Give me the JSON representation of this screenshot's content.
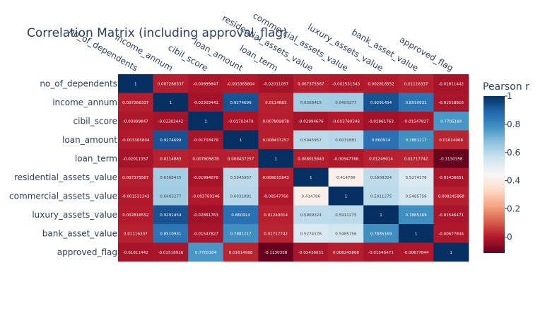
{
  "chart_data": {
    "type": "heatmap",
    "title": "Correlation Matrix (including approval_flag)",
    "variables": [
      "no_of_dependents",
      "income_annum",
      "cibil_score",
      "loan_amount",
      "loan_term",
      "residential_assets_value",
      "commercial_assets_value",
      "luxury_assets_value",
      "bank_asset_value",
      "approved_flag"
    ],
    "values": [
      [
        1,
        0.007266337,
        -0.00999847,
        -0.003365804,
        -0.02011057,
        0.007375567,
        -0.001531343,
        0.002816552,
        0.01116337,
        -0.01811442
      ],
      [
        0.007266337,
        1,
        -0.02303442,
        0.9274699,
        0.0114883,
        0.6368415,
        0.6403277,
        0.9291454,
        0.8510931,
        -0.01518916
      ],
      [
        -0.00999847,
        -0.02303442,
        1,
        -0.01703479,
        0.007809878,
        -0.01994676,
        -0.003769346,
        -0.02861763,
        -0.01547827,
        0.7705184
      ],
      [
        -0.003365804,
        0.9274699,
        -0.01703479,
        1,
        0.008437257,
        0.5945957,
        0.6031881,
        0.860914,
        0.7881217,
        0.01614968
      ],
      [
        -0.02011057,
        0.0114883,
        0.007809878,
        0.008437257,
        1,
        0.008015643,
        -0.00547766,
        0.01249014,
        0.01717742,
        -0.1130358
      ],
      [
        0.007375567,
        0.6368415,
        -0.01994676,
        0.5945957,
        0.008015643,
        1,
        0.414786,
        0.5909324,
        0.5274176,
        -0.01436651
      ],
      [
        -0.001531343,
        0.6403277,
        -0.003769346,
        0.6031881,
        -0.00547766,
        0.414786,
        1,
        0.5911275,
        0.5485756,
        0.008245868
      ],
      [
        0.002816552,
        0.9291454,
        -0.02861763,
        0.860914,
        0.01249014,
        0.5909324,
        0.5911275,
        1,
        0.7885169,
        -0.01546471
      ],
      [
        0.01116337,
        0.8510931,
        -0.01547827,
        0.7881217,
        0.01717742,
        0.5274176,
        0.5485756,
        0.7885169,
        1,
        -0.00677844
      ],
      [
        -0.01811442,
        -0.01518916,
        0.7705184,
        0.01614968,
        -0.1130358,
        -0.01436651,
        0.008245868,
        -0.01546471,
        -0.00677844,
        1
      ]
    ],
    "cell_labels": [
      [
        "1",
        "0.007266337",
        "-0.00999847",
        "-0.003365804",
        "-0.02011057",
        "0.007375567",
        "-0.001531343",
        "0.002816552",
        "0.01116337",
        "-0.01811442"
      ],
      [
        "0.007266337",
        "1",
        "-0.02303442",
        "0.9274699",
        "0.0114883",
        "0.6368415",
        "0.6403277",
        "0.9291454",
        "0.8510931",
        "-0.01518916"
      ],
      [
        "-0.00999847",
        "-0.02303442",
        "1",
        "-0.01703479",
        "0.007809878",
        "-0.01994676",
        "-0.003769346",
        "-0.02861763",
        "-0.01547827",
        "0.7705184"
      ],
      [
        "-0.003365804",
        "0.9274699",
        "-0.01703479",
        "1",
        "0.008437257",
        "0.5945957",
        "0.6031881",
        "0.860914",
        "0.7881217",
        "0.01614968"
      ],
      [
        "-0.02011057",
        "0.0114883",
        "0.007809878",
        "0.008437257",
        "1",
        "0.008015643",
        "-0.00547766",
        "0.01249014",
        "0.01717742",
        "-0.1130358"
      ],
      [
        "0.007375567",
        "0.6368415",
        "-0.01994676",
        "0.5945957",
        "0.008015643",
        "1",
        "0.414786",
        "0.5909324",
        "0.5274176",
        "-0.01436651"
      ],
      [
        "-0.001531343",
        "0.6403277",
        "-0.003769346",
        "0.6031881",
        "-0.00547766",
        "0.414786",
        "1",
        "0.5911275",
        "0.5485756",
        "0.008245868"
      ],
      [
        "0.002816552",
        "0.9291454",
        "-0.02861763",
        "0.860914",
        "0.01249014",
        "0.5909324",
        "0.5911275",
        "1",
        "0.7885169",
        "-0.01546471"
      ],
      [
        "0.01116337",
        "0.8510931",
        "-0.01547827",
        "0.7881217",
        "0.01717742",
        "0.5274176",
        "0.5485756",
        "0.7885169",
        "1",
        "-0.00677844"
      ],
      [
        "-0.01811442",
        "-0.01518916",
        "0.7705184",
        "0.01614968",
        "-0.1130358",
        "-0.01436651",
        "0.008245868",
        "-0.01546471",
        "-0.00677844",
        "1"
      ]
    ],
    "colorbar": {
      "title": "Pearson r",
      "range": [
        -0.1130358,
        1
      ],
      "ticks": [
        0,
        0.2,
        0.4,
        0.6,
        0.8,
        1
      ],
      "tick_labels": [
        "0",
        "0.2",
        "0.4",
        "0.6",
        "0.8",
        "1"
      ]
    },
    "colorscale": [
      [
        0.0,
        "#67001f"
      ],
      [
        0.1,
        "#b2182b"
      ],
      [
        0.2,
        "#d6604d"
      ],
      [
        0.3,
        "#f4a582"
      ],
      [
        0.4,
        "#fddbc7"
      ],
      [
        0.5,
        "#f7f7f7"
      ],
      [
        0.6,
        "#d1e5f0"
      ],
      [
        0.7,
        "#92c5de"
      ],
      [
        0.8,
        "#4393c3"
      ],
      [
        0.9,
        "#2166ac"
      ],
      [
        1.0,
        "#053061"
      ]
    ],
    "x_axis_side": "top",
    "legend": "none"
  }
}
